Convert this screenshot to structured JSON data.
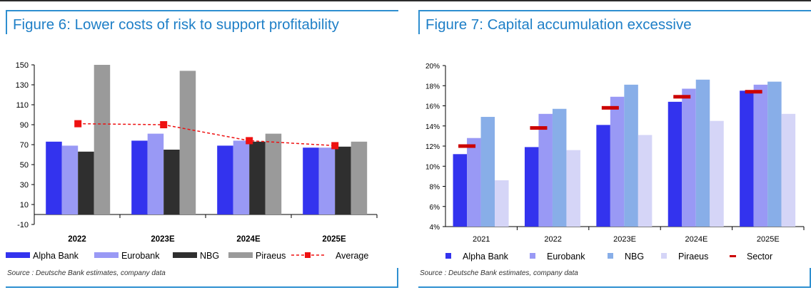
{
  "chart_data": [
    {
      "type": "bar",
      "title": "Figure 6: Lower costs of risk to support profitability",
      "source": "Source : Deutsche Bank estimates, company data",
      "categories": [
        "2022",
        "2023E",
        "2024E",
        "2025E"
      ],
      "ylim": [
        -10,
        150
      ],
      "yticks": [
        "-10",
        "10",
        "30",
        "50",
        "70",
        "90",
        "110",
        "130",
        "150"
      ],
      "series": [
        {
          "name": "Alpha Bank",
          "values": [
            73,
            74,
            69,
            67
          ],
          "color": "#3333ee"
        },
        {
          "name": "Eurobank",
          "values": [
            69,
            81,
            74,
            67
          ],
          "color": "#9999f5"
        },
        {
          "name": "NBG",
          "values": [
            63,
            65,
            73,
            68
          ],
          "color": "#2f2f2f"
        },
        {
          "name": "Piraeus",
          "values": [
            150,
            144,
            81,
            73
          ],
          "color": "#9a9a9a"
        }
      ],
      "line_series": {
        "name": "Average",
        "values": [
          91,
          90,
          74,
          69
        ],
        "color": "#ee1111"
      },
      "legend": [
        "Alpha Bank",
        "Eurobank",
        "NBG",
        "Piraeus",
        "Average"
      ],
      "legend_position": "bottom",
      "grid": false
    },
    {
      "type": "bar",
      "title": "Figure 7: Capital accumulation excessive",
      "source": "Source : Deutsche Bank estimates, company data",
      "categories": [
        "2021",
        "2022",
        "2023E",
        "2024E",
        "2025E"
      ],
      "ylim": [
        4,
        20
      ],
      "yticks": [
        "4%",
        "6%",
        "8%",
        "10%",
        "12%",
        "14%",
        "16%",
        "18%",
        "20%"
      ],
      "series": [
        {
          "name": "Alpha Bank",
          "values": [
            11.2,
            11.9,
            14.1,
            16.4,
            17.5
          ],
          "color": "#3333ee"
        },
        {
          "name": "Eurobank",
          "values": [
            12.8,
            15.2,
            16.9,
            17.7,
            18.1
          ],
          "color": "#9999f5"
        },
        {
          "name": "NBG",
          "values": [
            14.9,
            15.7,
            18.1,
            18.6,
            18.4
          ],
          "color": "#88aee8"
        },
        {
          "name": "Piraeus",
          "values": [
            8.6,
            11.6,
            13.1,
            14.5,
            15.2
          ],
          "color": "#d5d5f7"
        }
      ],
      "marker_series": {
        "name": "Sector",
        "values": [
          12.0,
          13.8,
          15.8,
          16.9,
          17.4
        ],
        "color": "#cc0000"
      },
      "legend": [
        "Alpha Bank",
        "Eurobank",
        "NBG",
        "Piraeus",
        "Sector"
      ],
      "legend_position": "bottom",
      "grid": false
    }
  ]
}
